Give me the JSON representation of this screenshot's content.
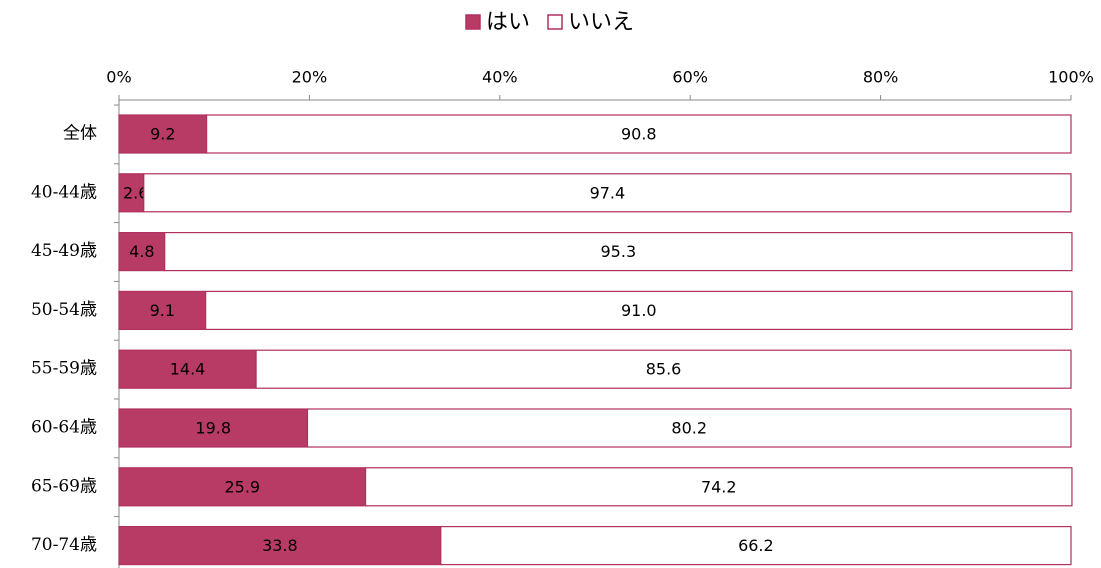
{
  "chart_data": {
    "type": "stacked_bar_horizontal",
    "categories": [
      "全体",
      "40-44歳",
      "45-49歳",
      "50-54歳",
      "55-59歳",
      "60-64歳",
      "65-69歳",
      "70-74歳"
    ],
    "series": [
      {
        "name": "はい",
        "color": "#b83b65",
        "values": [
          9.2,
          2.6,
          4.8,
          9.1,
          14.4,
          19.8,
          25.9,
          33.8
        ]
      },
      {
        "name": "いいえ",
        "color": "#ffffff",
        "values": [
          90.8,
          97.4,
          95.3,
          91.0,
          85.6,
          80.2,
          74.2,
          66.2
        ],
        "value_labels": [
          "90.8",
          "97.4",
          "95.3",
          "91.0",
          "85.6",
          "80.2",
          "74.2",
          "66.2"
        ]
      }
    ],
    "xlim": [
      0,
      100
    ],
    "xticks": [
      {
        "value": 0,
        "label": "0%"
      },
      {
        "value": 20,
        "label": "20%"
      },
      {
        "value": 40,
        "label": "40%"
      },
      {
        "value": 60,
        "label": "60%"
      },
      {
        "value": 80,
        "label": "80%"
      },
      {
        "value": 100,
        "label": "100%"
      }
    ],
    "legend": "top"
  }
}
